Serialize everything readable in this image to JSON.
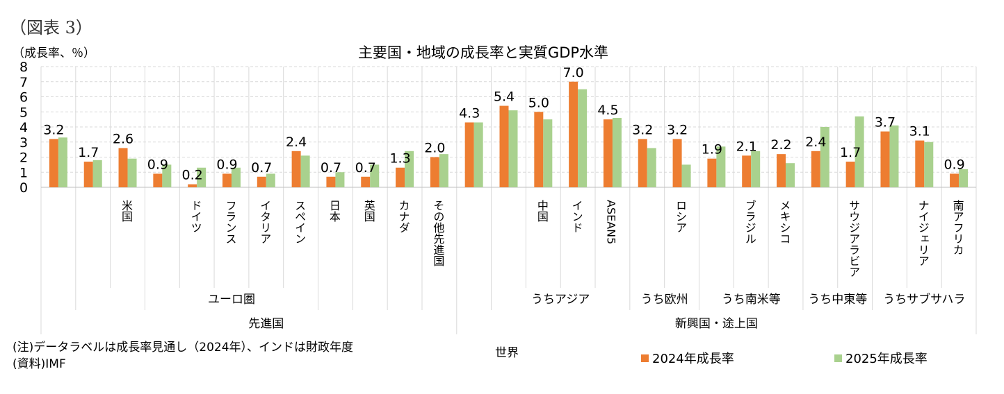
{
  "figure_label": "（図表 3）",
  "unit_label": "（成長率、％）",
  "note": "(注)データラベルは成長率見通し（2024年）、インドは財政年度",
  "source": "(資料)IMF",
  "world_label": "世界",
  "colors": {
    "series_2024": "#ED7D31",
    "series_2025": "#A9D18E",
    "grid": "#d9d9d9"
  },
  "chart_data": {
    "type": "bar",
    "title": "主要国・地域の成長率と実質GDP水準",
    "ylim": [
      0,
      8
    ],
    "yticks": [
      "0",
      "1",
      "2",
      "3",
      "4",
      "5",
      "6",
      "7",
      "8"
    ],
    "grid": true,
    "legend_position": "bottom-right",
    "categories": [
      "",
      "",
      "米国",
      "",
      "ドイツ",
      "フランス",
      "イタリア",
      "スペイン",
      "日本",
      "英国",
      "カナダ",
      "その他先進国",
      "",
      "",
      "中国",
      "インド",
      "ASEAN5",
      "",
      "ロシア",
      "",
      "ブラジル",
      "メキシコ",
      "",
      "サウジアラビア",
      "",
      "ナイジェリア",
      "南アフリカ"
    ],
    "series": [
      {
        "name": "2024年成長率",
        "values": [
          3.2,
          1.7,
          2.6,
          0.9,
          0.2,
          0.9,
          0.7,
          2.4,
          0.7,
          0.7,
          1.3,
          2.0,
          4.3,
          5.4,
          5.0,
          7.0,
          4.5,
          3.2,
          3.2,
          1.9,
          2.1,
          2.2,
          2.4,
          1.7,
          3.7,
          3.1,
          0.9
        ]
      },
      {
        "name": "2025年成長率",
        "values": [
          3.3,
          1.8,
          1.9,
          1.5,
          1.3,
          1.3,
          0.9,
          2.1,
          1.0,
          1.5,
          2.4,
          2.2,
          4.3,
          5.1,
          4.5,
          6.5,
          4.6,
          2.6,
          1.5,
          2.7,
          2.4,
          1.6,
          4.0,
          4.7,
          4.1,
          3.0,
          1.2
        ]
      }
    ],
    "data_labels": [
      "3.2",
      "1.7",
      "2.6",
      "0.9",
      "0.2",
      "0.9",
      "0.7",
      "2.4",
      "0.7",
      "0.7",
      "1.3",
      "2.0",
      "4.3",
      "5.4",
      "5.0",
      "7.0",
      "4.5",
      "3.2",
      "3.2",
      "1.9",
      "2.1",
      "2.2",
      "2.4",
      "1.7",
      "3.7",
      "3.1",
      "0.9"
    ],
    "group_labels_level1": [
      {
        "label": "ユーロ圏",
        "start": 3,
        "end": 7
      },
      {
        "label": "うちアジア",
        "start": 13,
        "end": 16
      },
      {
        "label": "うち欧州",
        "start": 17,
        "end": 18
      },
      {
        "label": "うち南米等",
        "start": 19,
        "end": 21
      },
      {
        "label": "うち中東等",
        "start": 22,
        "end": 23
      },
      {
        "label": "うちサブサハラ",
        "start": 24,
        "end": 26
      }
    ],
    "group_labels_level2": [
      {
        "label": "先進国",
        "start": 1,
        "end": 11
      },
      {
        "label": "新興国・途上国",
        "start": 12,
        "end": 26
      }
    ]
  }
}
